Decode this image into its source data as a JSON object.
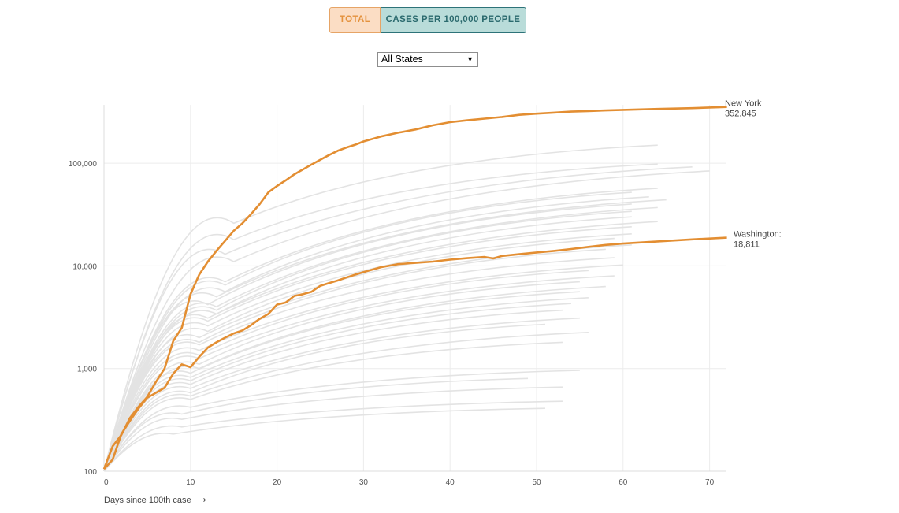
{
  "controls": {
    "toggle_total": "TOTAL",
    "toggle_per_capita": "CASES PER 100,000 PEOPLE",
    "select_value": "All States",
    "select_caret": "▼"
  },
  "colors": {
    "highlight": "#e38e32",
    "background_lines": "#e3e3e3",
    "grid": "#ececec"
  },
  "chart_data": {
    "type": "line",
    "xlabel": "Days since 100th case ⟶",
    "ylabel": "",
    "xlim": [
      0,
      72
    ],
    "ylim": [
      100,
      370000
    ],
    "yscale": "log",
    "x_ticks": [
      0,
      10,
      20,
      30,
      40,
      50,
      60,
      70
    ],
    "x_tick_labels": [
      "0",
      "10",
      "20",
      "30",
      "40",
      "50",
      "60",
      "70"
    ],
    "y_ticks": [
      100,
      1000,
      10000,
      100000
    ],
    "y_tick_labels": [
      "100",
      "1,000",
      "10,000",
      "100,000"
    ],
    "grid": true,
    "highlighted_series": [
      {
        "name": "New York",
        "label_value": "352,845",
        "points": [
          [
            0,
            105
          ],
          [
            1,
            175
          ],
          [
            2,
            225
          ],
          [
            3,
            330
          ],
          [
            4,
            425
          ],
          [
            5,
            530
          ],
          [
            6,
            740
          ],
          [
            7,
            1000
          ],
          [
            8,
            1850
          ],
          [
            9,
            2500
          ],
          [
            10,
            5300
          ],
          [
            11,
            8200
          ],
          [
            12,
            11000
          ],
          [
            13,
            14000
          ],
          [
            14,
            17500
          ],
          [
            15,
            22000
          ],
          [
            16,
            26000
          ],
          [
            17,
            32000
          ],
          [
            18,
            40000
          ],
          [
            19,
            52000
          ],
          [
            20,
            60000
          ],
          [
            21,
            68000
          ],
          [
            22,
            78000
          ],
          [
            23,
            87000
          ],
          [
            24,
            97000
          ],
          [
            25,
            108000
          ],
          [
            26,
            120000
          ],
          [
            27,
            132000
          ],
          [
            28,
            142000
          ],
          [
            29,
            151000
          ],
          [
            30,
            163000
          ],
          [
            32,
            182000
          ],
          [
            34,
            198000
          ],
          [
            36,
            213000
          ],
          [
            38,
            234000
          ],
          [
            40,
            251000
          ],
          [
            42,
            262000
          ],
          [
            44,
            272000
          ],
          [
            46,
            282000
          ],
          [
            48,
            296000
          ],
          [
            50,
            304000
          ],
          [
            52,
            311000
          ],
          [
            54,
            318000
          ],
          [
            56,
            322000
          ],
          [
            58,
            327000
          ],
          [
            60,
            331000
          ],
          [
            64,
            338000
          ],
          [
            68,
            344000
          ],
          [
            72,
            352845
          ]
        ]
      },
      {
        "name": "Washington:",
        "label_value": "18,811",
        "points": [
          [
            0,
            105
          ],
          [
            1,
            130
          ],
          [
            2,
            230
          ],
          [
            3,
            310
          ],
          [
            4,
            410
          ],
          [
            5,
            520
          ],
          [
            6,
            580
          ],
          [
            7,
            650
          ],
          [
            8,
            890
          ],
          [
            9,
            1100
          ],
          [
            10,
            1030
          ],
          [
            11,
            1300
          ],
          [
            12,
            1600
          ],
          [
            13,
            1800
          ],
          [
            14,
            2000
          ],
          [
            15,
            2200
          ],
          [
            16,
            2350
          ],
          [
            17,
            2650
          ],
          [
            18,
            3050
          ],
          [
            19,
            3400
          ],
          [
            20,
            4200
          ],
          [
            21,
            4400
          ],
          [
            22,
            5100
          ],
          [
            23,
            5300
          ],
          [
            24,
            5600
          ],
          [
            25,
            6400
          ],
          [
            26,
            6800
          ],
          [
            27,
            7200
          ],
          [
            28,
            7700
          ],
          [
            29,
            8200
          ],
          [
            30,
            8700
          ],
          [
            32,
            9700
          ],
          [
            34,
            10400
          ],
          [
            36,
            10700
          ],
          [
            38,
            11000
          ],
          [
            40,
            11500
          ],
          [
            42,
            11900
          ],
          [
            44,
            12200
          ],
          [
            45,
            11800
          ],
          [
            46,
            12500
          ],
          [
            48,
            13000
          ],
          [
            50,
            13500
          ],
          [
            52,
            14000
          ],
          [
            54,
            14600
          ],
          [
            56,
            15300
          ],
          [
            58,
            16000
          ],
          [
            60,
            16500
          ],
          [
            64,
            17300
          ],
          [
            68,
            18100
          ],
          [
            72,
            18811
          ]
        ]
      }
    ],
    "background_series": [
      {
        "end_day": 64,
        "end_value": 150000,
        "mid_day": 15,
        "mid_value": 26000
      },
      {
        "end_day": 64,
        "end_value": 98000,
        "mid_day": 15,
        "mid_value": 18000
      },
      {
        "end_day": 68,
        "end_value": 92000,
        "mid_day": 14,
        "mid_value": 13000
      },
      {
        "end_day": 70,
        "end_value": 84000,
        "mid_day": 15,
        "mid_value": 11000
      },
      {
        "end_day": 64,
        "end_value": 57000,
        "mid_day": 14,
        "mid_value": 7000
      },
      {
        "end_day": 61,
        "end_value": 52000,
        "mid_day": 14,
        "mid_value": 6500
      },
      {
        "end_day": 63,
        "end_value": 47000,
        "mid_day": 14,
        "mid_value": 5600
      },
      {
        "end_day": 65,
        "end_value": 44000,
        "mid_day": 13,
        "mid_value": 5000
      },
      {
        "end_day": 61,
        "end_value": 40000,
        "mid_day": 12,
        "mid_value": 4200
      },
      {
        "end_day": 64,
        "end_value": 37000,
        "mid_day": 13,
        "mid_value": 4000
      },
      {
        "end_day": 61,
        "end_value": 34000,
        "mid_day": 13,
        "mid_value": 3700
      },
      {
        "end_day": 61,
        "end_value": 30000,
        "mid_day": 13,
        "mid_value": 3400
      },
      {
        "end_day": 64,
        "end_value": 27000,
        "mid_day": 12,
        "mid_value": 3100
      },
      {
        "end_day": 61,
        "end_value": 24000,
        "mid_day": 12,
        "mid_value": 2900
      },
      {
        "end_day": 61,
        "end_value": 20500,
        "mid_day": 12,
        "mid_value": 2600
      },
      {
        "end_day": 59,
        "end_value": 18500,
        "mid_day": 12,
        "mid_value": 2300
      },
      {
        "end_day": 61,
        "end_value": 16000,
        "mid_day": 11,
        "mid_value": 2000
      },
      {
        "end_day": 58,
        "end_value": 14500,
        "mid_day": 11,
        "mid_value": 1800
      },
      {
        "end_day": 59,
        "end_value": 12000,
        "mid_day": 11,
        "mid_value": 1700
      },
      {
        "end_day": 60,
        "end_value": 10200,
        "mid_day": 11,
        "mid_value": 1500
      },
      {
        "end_day": 56,
        "end_value": 9000,
        "mid_day": 11,
        "mid_value": 1350
      },
      {
        "end_day": 59,
        "end_value": 8000,
        "mid_day": 11,
        "mid_value": 1250
      },
      {
        "end_day": 55,
        "end_value": 7000,
        "mid_day": 11,
        "mid_value": 1100
      },
      {
        "end_day": 58,
        "end_value": 6300,
        "mid_day": 11,
        "mid_value": 1000
      },
      {
        "end_day": 55,
        "end_value": 5600,
        "mid_day": 10,
        "mid_value": 900
      },
      {
        "end_day": 56,
        "end_value": 4900,
        "mid_day": 10,
        "mid_value": 820
      },
      {
        "end_day": 54,
        "end_value": 4300,
        "mid_day": 10,
        "mid_value": 760
      },
      {
        "end_day": 53,
        "end_value": 3700,
        "mid_day": 10,
        "mid_value": 700
      },
      {
        "end_day": 55,
        "end_value": 3100,
        "mid_day": 10,
        "mid_value": 640
      },
      {
        "end_day": 51,
        "end_value": 2700,
        "mid_day": 10,
        "mid_value": 580
      },
      {
        "end_day": 56,
        "end_value": 2250,
        "mid_day": 10,
        "mid_value": 540
      },
      {
        "end_day": 53,
        "end_value": 1800,
        "mid_day": 10,
        "mid_value": 500
      },
      {
        "end_day": 55,
        "end_value": 960,
        "mid_day": 10,
        "mid_value": 420
      },
      {
        "end_day": 49,
        "end_value": 800,
        "mid_day": 9,
        "mid_value": 360
      },
      {
        "end_day": 53,
        "end_value": 660,
        "mid_day": 9,
        "mid_value": 320
      },
      {
        "end_day": 53,
        "end_value": 480,
        "mid_day": 9,
        "mid_value": 270
      },
      {
        "end_day": 51,
        "end_value": 410,
        "mid_day": 8,
        "mid_value": 230
      }
    ]
  }
}
